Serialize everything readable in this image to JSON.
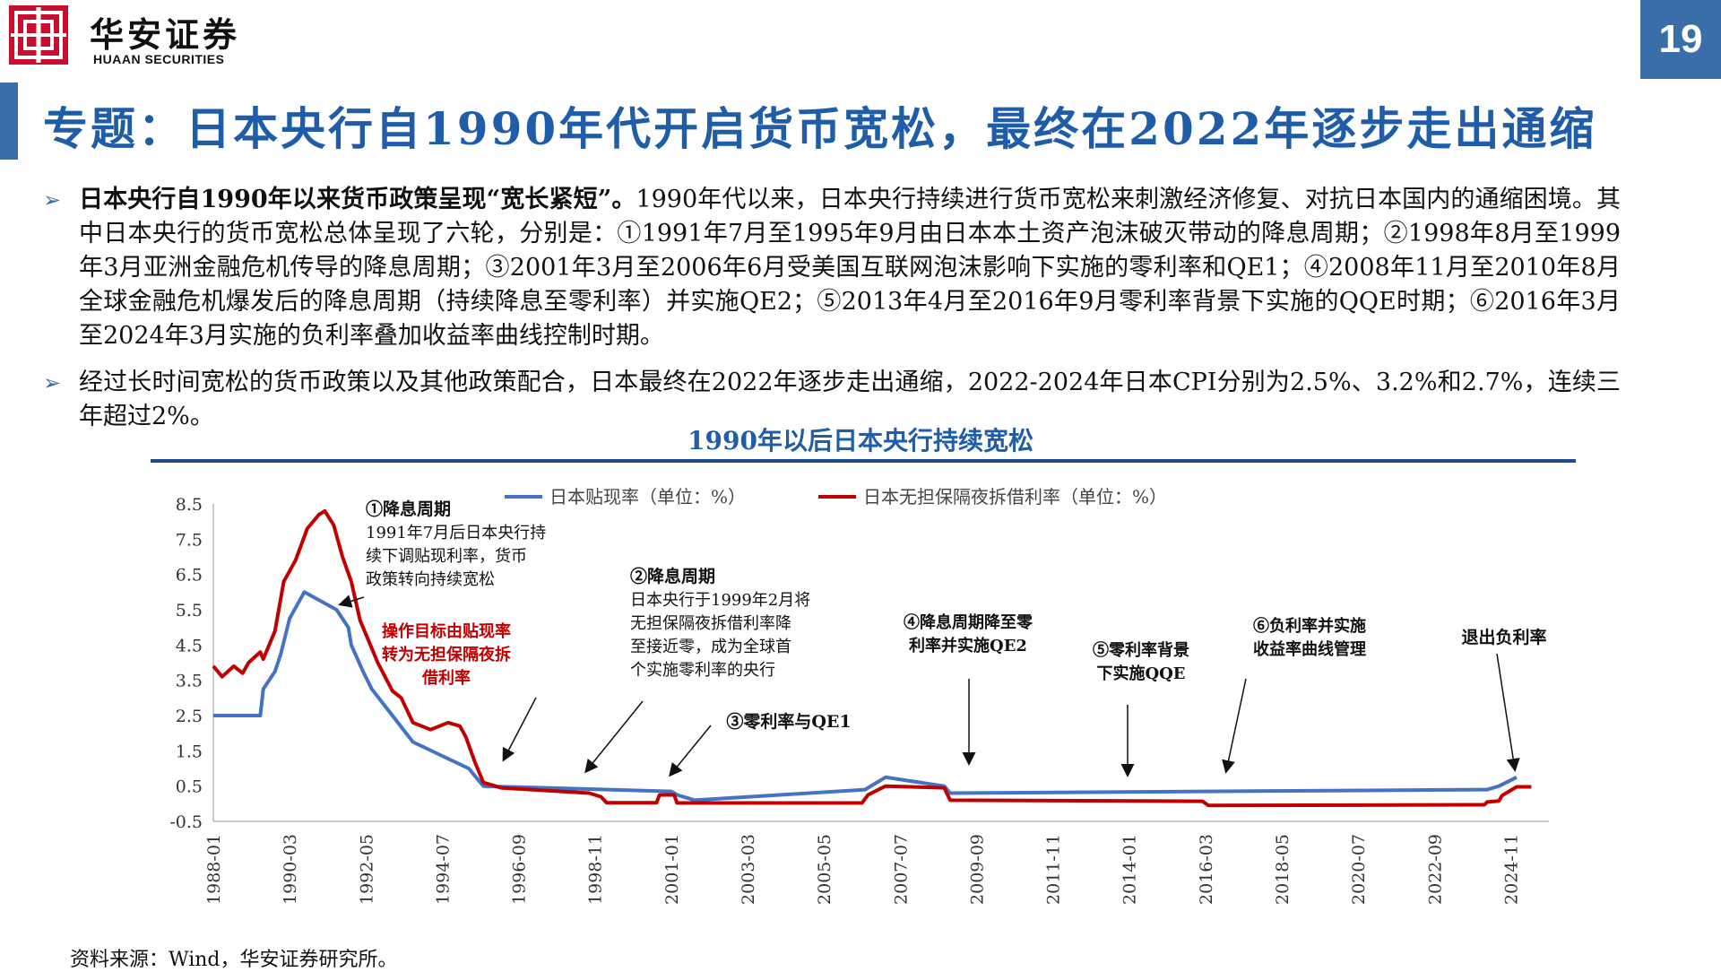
{
  "header": {
    "logo_cn": "华安证券",
    "logo_en": "HUAAN SECURITIES",
    "page_number": "19"
  },
  "title": "专题：日本央行自1990年代开启货币宽松，最终在2022年逐步走出通缩",
  "bullets": [
    {
      "bold": "日本央行自1990年以来货币政策呈现“宽长紧短”。",
      "text": "1990年代以来，日本央行持续进行货币宽松来刺激经济修复、对抗日本国内的通缩困境。其中日本央行的货币宽松总体呈现了六轮，分别是：①1991年7月至1995年9月由日本本土资产泡沫破灭带动的降息周期；②1998年8月至1999年3月亚洲金融危机传导的降息周期；③2001年3月至2006年6月受美国互联网泡沫影响下实施的零利率和QE1；④2008年11月至2010年8月全球金融危机爆发后的降息周期（持续降息至零利率）并实施QE2；⑤2013年4月至2016年9月零利率背景下实施的QQE时期；⑥2016年3月至2024年3月实施的负利率叠加收益率曲线控制时期。"
    },
    {
      "bold": "",
      "text": "经过长时间宽松的货币政策以及其他政策配合，日本最终在2022年逐步走出通缩，2022-2024年日本CPI分别为2.5%、3.2%和2.7%，连续三年超过2%。"
    }
  ],
  "chart_title": "1990年以后日本央行持续宽松",
  "source": "资料来源：Wind，华安证券研究所。",
  "chart_data": {
    "type": "line",
    "ylim": [
      -0.5,
      8.5
    ],
    "yticks": [
      "8.5",
      "7.5",
      "6.5",
      "5.5",
      "4.5",
      "3.5",
      "2.5",
      "1.5",
      "0.5",
      "-0.5"
    ],
    "x_range": [
      "1988-01",
      "2025-12"
    ],
    "xticks": [
      "1988-01",
      "1990-03",
      "1992-05",
      "1994-07",
      "1996-09",
      "1998-11",
      "2001-01",
      "2003-03",
      "2005-05",
      "2007-07",
      "2009-09",
      "2011-11",
      "2014-01",
      "2016-03",
      "2018-05",
      "2020-07",
      "2022-09",
      "2024-11"
    ],
    "legend_position": "top",
    "series": [
      {
        "name": "日本贴现率（单位：%）",
        "color": "#4472c4",
        "points": [
          [
            "1988-01",
            2.5
          ],
          [
            "1989-05",
            2.5
          ],
          [
            "1989-06",
            3.25
          ],
          [
            "1989-10",
            3.75
          ],
          [
            "1989-12",
            4.25
          ],
          [
            "1990-03",
            5.25
          ],
          [
            "1990-08",
            6.0
          ],
          [
            "1991-07",
            5.5
          ],
          [
            "1991-11",
            5.0
          ],
          [
            "1991-12",
            4.5
          ],
          [
            "1992-04",
            3.75
          ],
          [
            "1992-07",
            3.25
          ],
          [
            "1993-02",
            2.5
          ],
          [
            "1993-09",
            1.75
          ],
          [
            "1995-04",
            1.0
          ],
          [
            "1995-09",
            0.5
          ],
          [
            "2001-01",
            0.35
          ],
          [
            "2001-03",
            0.25
          ],
          [
            "2001-09",
            0.1
          ],
          [
            "2006-07",
            0.4
          ],
          [
            "2007-02",
            0.75
          ],
          [
            "2008-10",
            0.5
          ],
          [
            "2008-12",
            0.3
          ],
          [
            "2024-03",
            0.4
          ],
          [
            "2024-07",
            0.5
          ],
          [
            "2025-01",
            0.75
          ]
        ]
      },
      {
        "name": "日本无担保隔夜拆借利率（单位：%）",
        "color": "#c00000",
        "points": [
          [
            "1988-01",
            3.9
          ],
          [
            "1988-04",
            3.6
          ],
          [
            "1988-08",
            3.9
          ],
          [
            "1988-11",
            3.7
          ],
          [
            "1989-01",
            4.0
          ],
          [
            "1989-05",
            4.3
          ],
          [
            "1989-06",
            4.1
          ],
          [
            "1989-10",
            4.9
          ],
          [
            "1990-01",
            6.3
          ],
          [
            "1990-05",
            6.9
          ],
          [
            "1990-09",
            7.8
          ],
          [
            "1991-01",
            8.2
          ],
          [
            "1991-03",
            8.3
          ],
          [
            "1991-06",
            7.9
          ],
          [
            "1991-09",
            7.0
          ],
          [
            "1991-12",
            6.3
          ],
          [
            "1992-03",
            5.2
          ],
          [
            "1992-06",
            4.6
          ],
          [
            "1992-09",
            4.0
          ],
          [
            "1993-02",
            3.2
          ],
          [
            "1993-05",
            3.0
          ],
          [
            "1993-09",
            2.3
          ],
          [
            "1994-03",
            2.1
          ],
          [
            "1994-06",
            2.2
          ],
          [
            "1994-09",
            2.3
          ],
          [
            "1995-01",
            2.2
          ],
          [
            "1995-03",
            1.9
          ],
          [
            "1995-06",
            1.2
          ],
          [
            "1995-09",
            0.6
          ],
          [
            "1996-03",
            0.45
          ],
          [
            "1998-09",
            0.3
          ],
          [
            "1999-01",
            0.2
          ],
          [
            "1999-03",
            0.03
          ],
          [
            "2000-08",
            0.03
          ],
          [
            "2000-09",
            0.25
          ],
          [
            "2001-02",
            0.25
          ],
          [
            "2001-03",
            0.02
          ],
          [
            "2006-06",
            0.02
          ],
          [
            "2006-08",
            0.25
          ],
          [
            "2007-02",
            0.5
          ],
          [
            "2008-10",
            0.45
          ],
          [
            "2008-12",
            0.1
          ],
          [
            "2016-02",
            0.07
          ],
          [
            "2016-04",
            -0.05
          ],
          [
            "2024-02",
            -0.03
          ],
          [
            "2024-03",
            0.05
          ],
          [
            "2024-07",
            0.08
          ],
          [
            "2024-08",
            0.23
          ],
          [
            "2025-01",
            0.48
          ],
          [
            "2025-06",
            0.48
          ]
        ]
      }
    ],
    "annotations": [
      {
        "title": "①降息周期",
        "lines": [
          "1991年7月后日本央行持",
          "续下调贴现利率，货币",
          "政策转向持续宽松"
        ],
        "color": "#111111"
      },
      {
        "title": "",
        "lines": [
          "操作目标由贴现率",
          "转为无担保隔夜拆",
          "借利率"
        ],
        "color": "#c00000"
      },
      {
        "title": "②降息周期",
        "lines": [
          "日本央行于1999年2月将",
          "无担保隔夜拆借利率降",
          "至接近零，成为全球首",
          "个实施零利率的央行"
        ],
        "color": "#111111"
      },
      {
        "title": "③零利率与QE1",
        "lines": [],
        "color": "#111111"
      },
      {
        "title": "",
        "lines": [
          "④降息周期降至零",
          "利率并实施QE2"
        ],
        "color": "#111111"
      },
      {
        "title": "",
        "lines": [
          "⑤零利率背景",
          "下实施QQE"
        ],
        "color": "#111111"
      },
      {
        "title": "",
        "lines": [
          "⑥负利率并实施",
          "收益率曲线管理"
        ],
        "color": "#111111"
      },
      {
        "title": "退出负利率",
        "lines": [],
        "color": "#111111"
      }
    ]
  }
}
